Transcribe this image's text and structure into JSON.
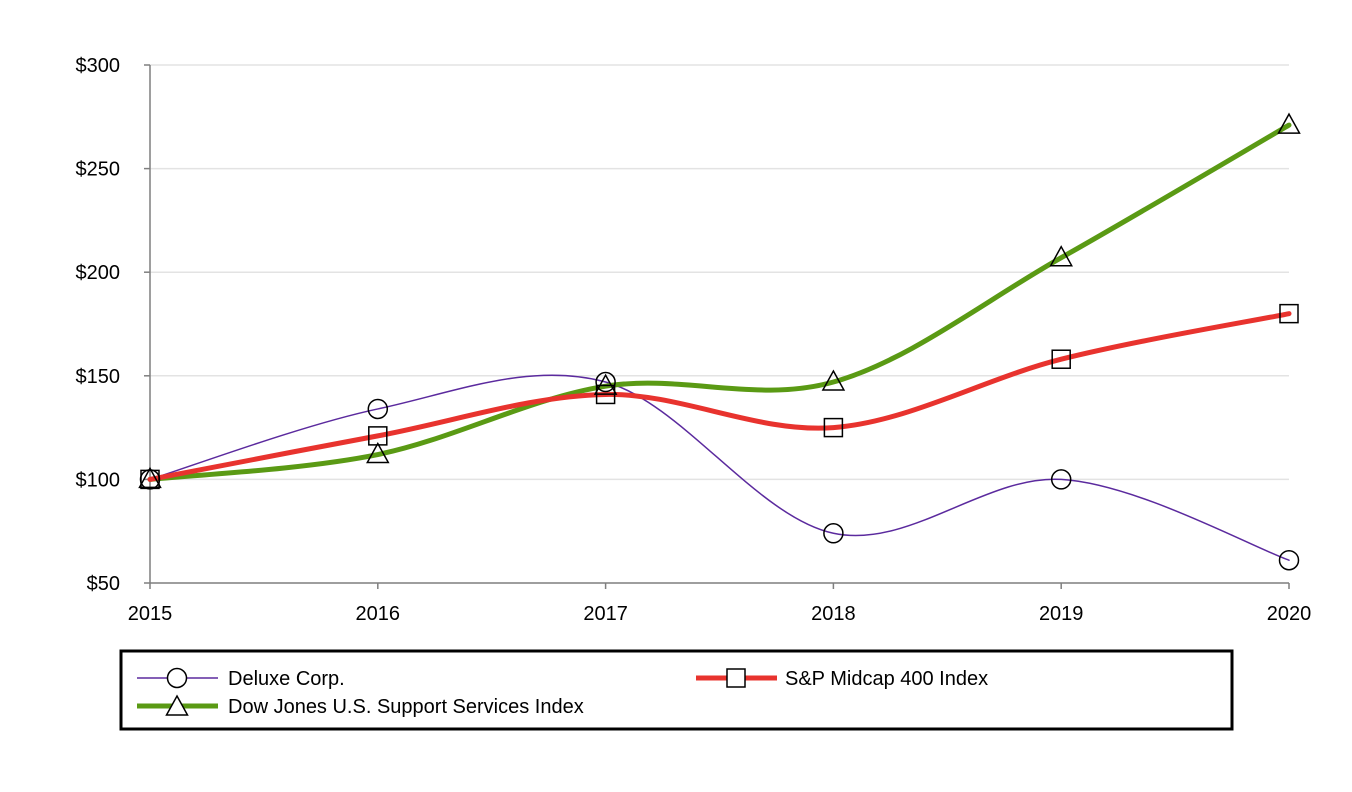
{
  "chart_data": {
    "type": "line",
    "title": "",
    "xlabel": "",
    "ylabel": "",
    "x": [
      "2015",
      "2016",
      "2017",
      "2018",
      "2019",
      "2020"
    ],
    "ylim": [
      50,
      300
    ],
    "yticks": [
      50,
      100,
      150,
      200,
      250,
      300
    ],
    "ytick_labels": [
      "$50",
      "$100",
      "$150",
      "$200",
      "$250",
      "$300"
    ],
    "grid": "horizontal",
    "legend_position": "bottom",
    "series": [
      {
        "name": "Deluxe Corp.",
        "values": [
          100,
          134,
          147,
          74,
          100,
          61
        ],
        "color": "#5b2a9e",
        "marker": "circle",
        "line_weight": "thin"
      },
      {
        "name": "S&P Midcap 400 Index",
        "values": [
          100,
          121,
          141,
          125,
          158,
          180
        ],
        "color": "#e8332e",
        "marker": "square",
        "line_weight": "thick"
      },
      {
        "name": "Dow Jones U.S. Support Services Index",
        "values": [
          100,
          112,
          145,
          147,
          207,
          271
        ],
        "color": "#5a9a14",
        "marker": "triangle",
        "line_weight": "thick"
      }
    ]
  }
}
